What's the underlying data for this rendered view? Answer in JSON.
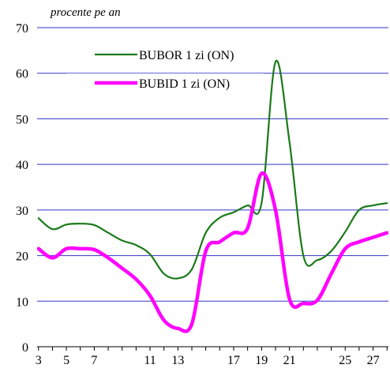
{
  "chart_data": {
    "type": "line",
    "unit_label": "procente pe an",
    "ylim": [
      0,
      70
    ],
    "y_ticks": [
      0,
      10,
      20,
      30,
      40,
      50,
      60,
      70
    ],
    "xlim": [
      2.9,
      28.1
    ],
    "x_ticks": [
      3,
      5,
      7,
      11,
      13,
      17,
      19,
      21,
      25,
      27
    ],
    "grid": "horizontal",
    "legend_position": "top-center",
    "series": [
      {
        "name": "BUBOR 1 zi (ON)",
        "color": "#1a7a1a",
        "x": [
          3,
          4,
          5,
          6,
          7,
          8,
          9,
          10,
          11,
          12,
          13,
          14,
          15,
          16,
          17,
          18,
          19,
          20,
          21,
          22,
          23,
          24,
          25,
          26,
          27,
          28
        ],
        "values": [
          28.2,
          25.8,
          26.8,
          27.0,
          26.7,
          25.0,
          23.3,
          22.3,
          20.3,
          16.0,
          15.0,
          17.0,
          25.0,
          28.3,
          29.5,
          31.0,
          31.5,
          62.5,
          45.0,
          20.0,
          19.0,
          21.0,
          25.2,
          30.0,
          31.0,
          31.5
        ]
      },
      {
        "name": "BUBID 1 zi (ON)",
        "color": "#ff00ff",
        "x": [
          3,
          4,
          5,
          6,
          7,
          8,
          9,
          10,
          11,
          12,
          13,
          14,
          15,
          16,
          17,
          18,
          19,
          20,
          21,
          22,
          23,
          24,
          25,
          26,
          27,
          28
        ],
        "values": [
          21.5,
          19.5,
          21.5,
          21.5,
          21.3,
          19.5,
          17.2,
          14.8,
          11.2,
          5.8,
          4.0,
          5.0,
          21.0,
          23.0,
          25.0,
          26.0,
          38.0,
          30.0,
          10.5,
          9.5,
          10.2,
          16.0,
          21.5,
          23.0,
          24.0,
          25.0
        ]
      }
    ]
  }
}
